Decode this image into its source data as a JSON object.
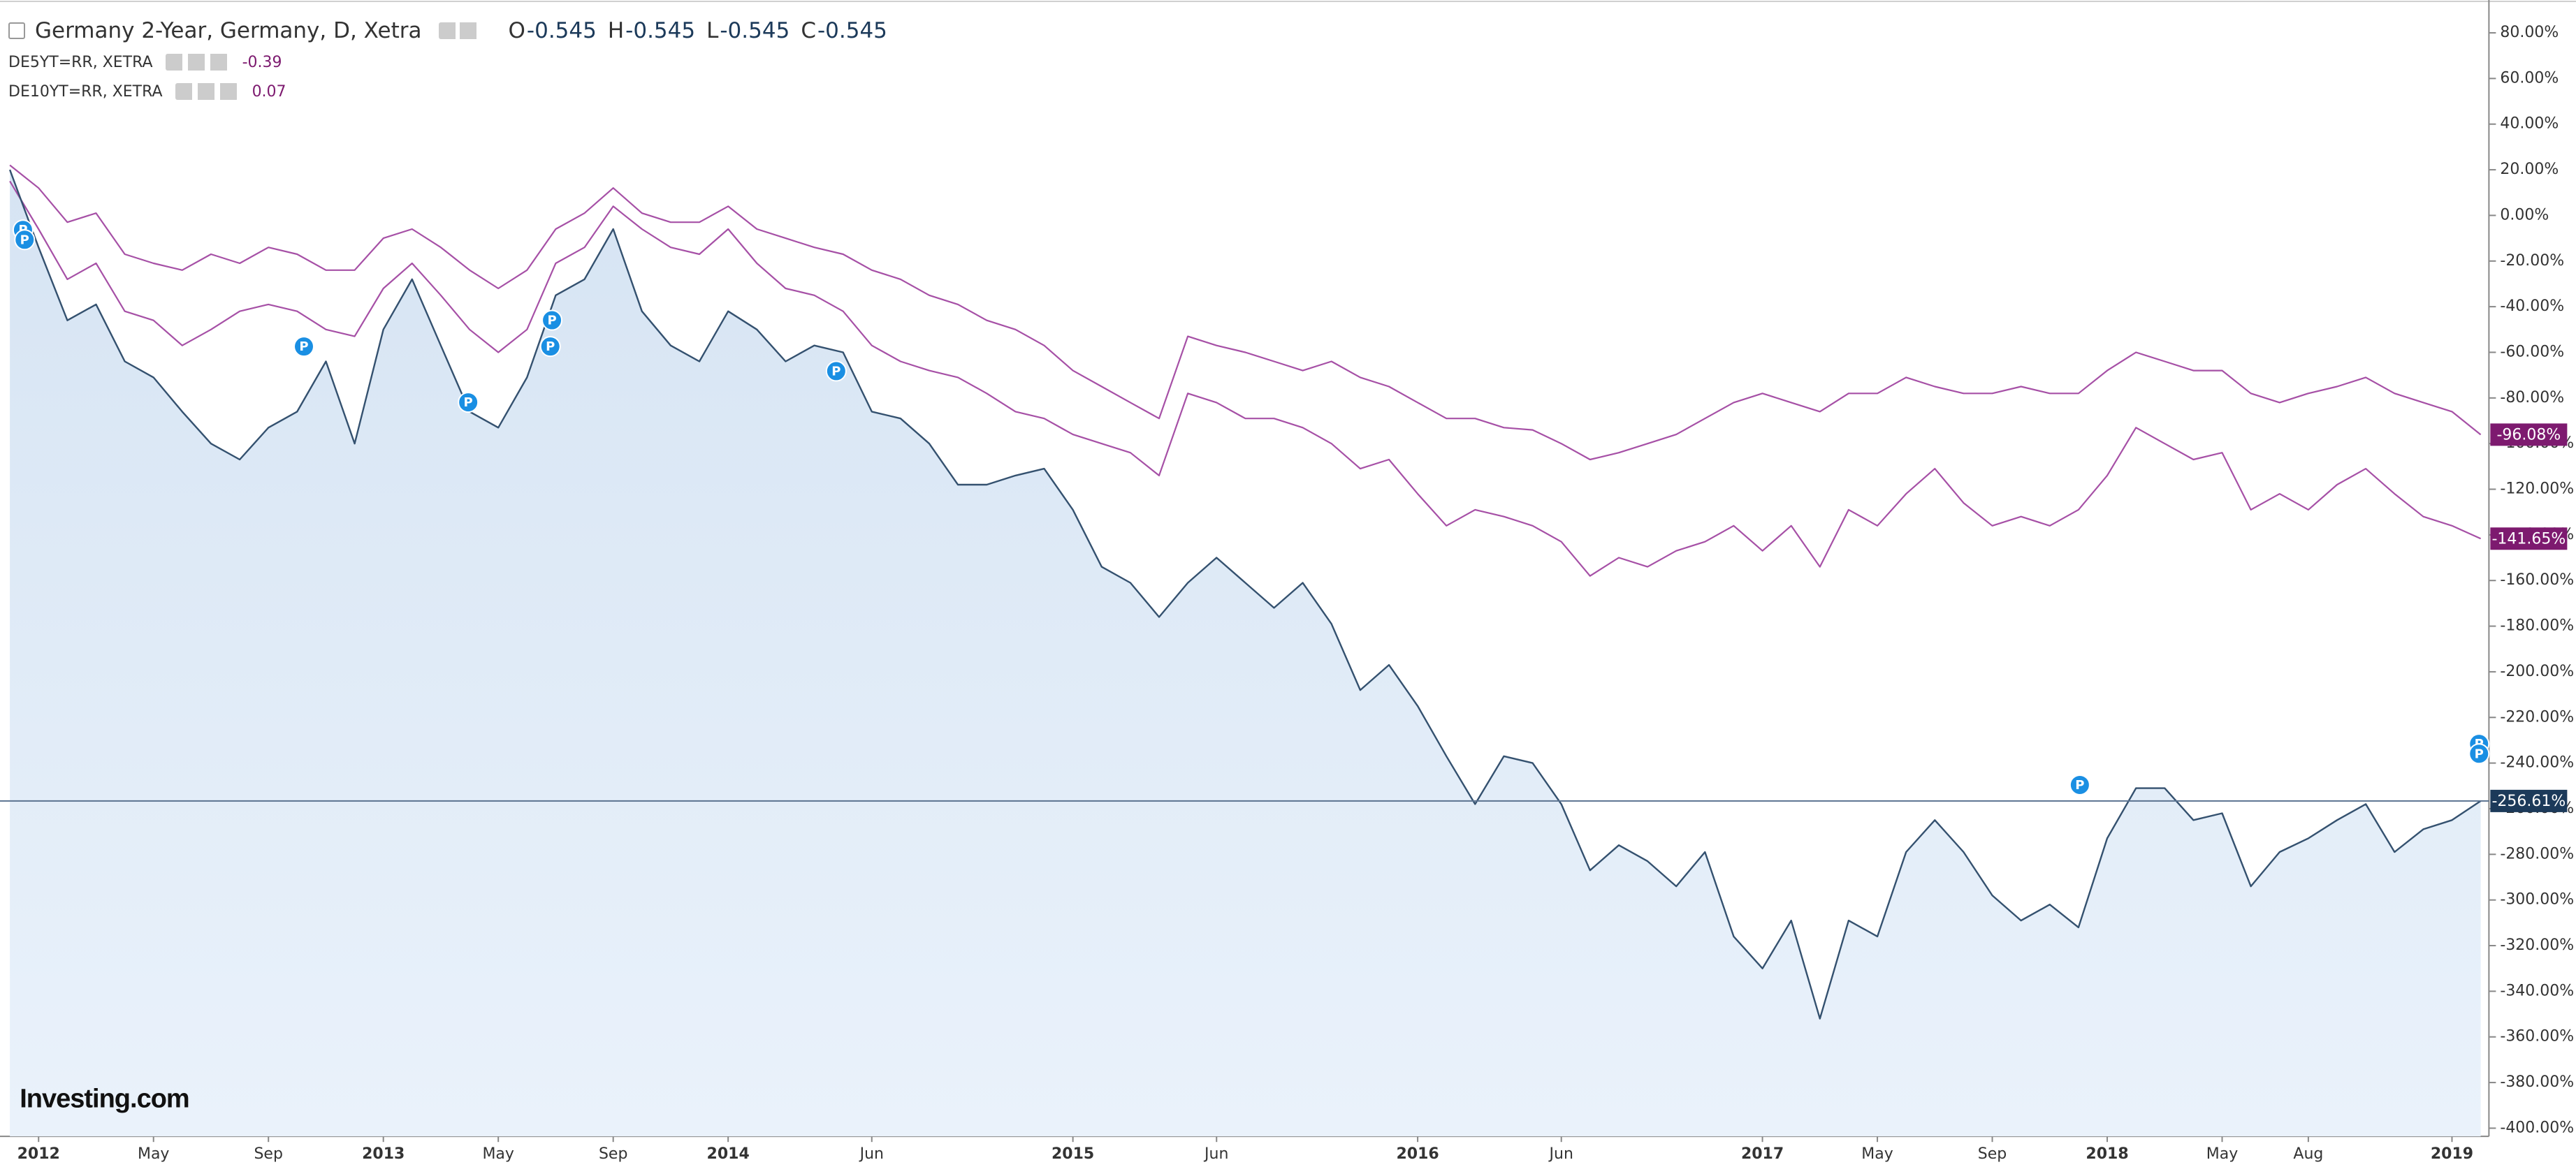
{
  "chart_data": {
    "type": "line",
    "logo": "Investing.com",
    "event_marker": "P",
    "x": [
      "2011-12",
      "2012-01",
      "2012-02",
      "2012-03",
      "2012-04",
      "2012-05",
      "2012-06",
      "2012-07",
      "2012-08",
      "2012-09",
      "2012-10",
      "2012-11",
      "2012-12",
      "2013-01",
      "2013-02",
      "2013-03",
      "2013-04",
      "2013-05",
      "2013-06",
      "2013-07",
      "2013-08",
      "2013-09",
      "2013-10",
      "2013-11",
      "2013-12",
      "2014-01",
      "2014-02",
      "2014-03",
      "2014-04",
      "2014-05",
      "2014-06",
      "2014-07",
      "2014-08",
      "2014-09",
      "2014-10",
      "2014-11",
      "2014-12",
      "2015-01",
      "2015-02",
      "2015-03",
      "2015-04",
      "2015-05",
      "2015-06",
      "2015-07",
      "2015-08",
      "2015-09",
      "2015-10",
      "2015-11",
      "2015-12",
      "2016-01",
      "2016-02",
      "2016-03",
      "2016-04",
      "2016-05",
      "2016-06",
      "2016-07",
      "2016-08",
      "2016-09",
      "2016-10",
      "2016-11",
      "2016-12",
      "2017-01",
      "2017-02",
      "2017-03",
      "2017-04",
      "2017-05",
      "2017-06",
      "2017-07",
      "2017-08",
      "2017-09",
      "2017-10",
      "2017-11",
      "2017-12",
      "2018-01",
      "2018-02",
      "2018-03",
      "2018-04",
      "2018-05",
      "2018-06",
      "2018-07",
      "2018-08",
      "2018-09",
      "2018-10",
      "2018-11",
      "2018-12",
      "2019-01",
      "2019-02"
    ],
    "series": [
      {
        "name": "Germany 2-Year, Germany, D, Xetra",
        "color": "#34516f",
        "area": true,
        "ohlc": [
          {
            "label": "O",
            "value": -0.545
          },
          {
            "label": "H",
            "value": -0.545
          },
          {
            "label": "L",
            "value": -0.545
          },
          {
            "label": "C",
            "value": -0.545
          }
        ],
        "last_label": "-256.61%",
        "label_color": "#1c3a5a",
        "values": [
          20,
          -14,
          -46,
          -39,
          -64,
          -71,
          -86,
          -100,
          -107,
          -93,
          -86,
          -64,
          -100,
          -50,
          -28,
          -57,
          -86,
          -93,
          -71,
          -35,
          -28,
          -6,
          -42,
          -57,
          -64,
          -42,
          -50,
          -64,
          -57,
          -60,
          -86,
          -89,
          -100,
          -118,
          -118,
          -114,
          -111,
          -129,
          -154,
          -161,
          -176,
          -161,
          -150,
          -161,
          -172,
          -161,
          -179,
          -208,
          -197,
          -215,
          -237,
          -258,
          -237,
          -240,
          -258,
          -287,
          -276,
          -283,
          -294,
          -279,
          -316,
          -330,
          -309,
          -352,
          -309,
          -316,
          -279,
          -265,
          -279,
          -298,
          -309,
          -302,
          -312,
          -273,
          -251,
          -251,
          -265,
          -262,
          -294,
          -279,
          -273,
          -265,
          -258,
          -279,
          -269,
          -265,
          -256.61
        ]
      },
      {
        "name": "DE5YT=RR, XETRA",
        "color": "#a650a6",
        "legend_value": -0.39,
        "last_label": "-141.65%",
        "label_color": "#7d1a6f",
        "values": [
          15,
          -6,
          -28,
          -21,
          -42,
          -46,
          -57,
          -50,
          -42,
          -39,
          -42,
          -50,
          -53,
          -32,
          -21,
          -35,
          -50,
          -60,
          -50,
          -21,
          -14,
          4,
          -6,
          -14,
          -17,
          -6,
          -21,
          -32,
          -35,
          -42,
          -57,
          -64,
          -68,
          -71,
          -78,
          -86,
          -89,
          -96,
          -100,
          -104,
          -114,
          -78,
          -82,
          -89,
          -89,
          -93,
          -100,
          -111,
          -107,
          -122,
          -136,
          -129,
          -132,
          -136,
          -143,
          -158,
          -150,
          -154,
          -147,
          -143,
          -136,
          -147,
          -136,
          -154,
          -129,
          -136,
          -122,
          -111,
          -126,
          -136,
          -132,
          -136,
          -129,
          -114,
          -93,
          -100,
          -107,
          -104,
          -129,
          -122,
          -129,
          -118,
          -111,
          -122,
          -132,
          -136,
          -141.65
        ]
      },
      {
        "name": "DE10YT=RR, XETRA",
        "color": "#a650a6",
        "legend_value": 0.07,
        "last_label": "-96.08%",
        "label_color": "#7d1a6f",
        "values": [
          22,
          12,
          -3,
          1,
          -17,
          -21,
          -24,
          -17,
          -21,
          -14,
          -17,
          -24,
          -24,
          -10,
          -6,
          -14,
          -24,
          -32,
          -24,
          -6,
          1,
          12,
          1,
          -3,
          -3,
          4,
          -6,
          -10,
          -14,
          -17,
          -24,
          -28,
          -35,
          -39,
          -46,
          -50,
          -57,
          -68,
          -75,
          -82,
          -89,
          -53,
          -57,
          -60,
          -64,
          -68,
          -64,
          -71,
          -75,
          -82,
          -89,
          -89,
          -93,
          -94,
          -100,
          -107,
          -104,
          -100,
          -96,
          -89,
          -82,
          -78,
          -82,
          -86,
          -78,
          -78,
          -71,
          -75,
          -78,
          -78,
          -75,
          -78,
          -78,
          -68,
          -60,
          -64,
          -68,
          -68,
          -78,
          -82,
          -78,
          -75,
          -71,
          -78,
          -82,
          -86,
          -96.08
        ]
      }
    ],
    "xlim": [
      "2011-12",
      "2019-02"
    ],
    "xticks": [
      {
        "value": "2012-01",
        "label": "2012"
      },
      {
        "value": "2012-05",
        "label": "May"
      },
      {
        "value": "2012-09",
        "label": "Sep"
      },
      {
        "value": "2013-01",
        "label": "2013"
      },
      {
        "value": "2013-05",
        "label": "May"
      },
      {
        "value": "2013-09",
        "label": "Sep"
      },
      {
        "value": "2014-01",
        "label": "2014"
      },
      {
        "value": "2014-06",
        "label": "Jun"
      },
      {
        "value": "2015-01",
        "label": "2015"
      },
      {
        "value": "2015-06",
        "label": "Jun"
      },
      {
        "value": "2016-01",
        "label": "2016"
      },
      {
        "value": "2016-06",
        "label": "Jun"
      },
      {
        "value": "2017-01",
        "label": "2017"
      },
      {
        "value": "2017-05",
        "label": "May"
      },
      {
        "value": "2017-09",
        "label": "Sep"
      },
      {
        "value": "2018-01",
        "label": "2018"
      },
      {
        "value": "2018-05",
        "label": "May"
      },
      {
        "value": "2018-08",
        "label": "Aug"
      },
      {
        "value": "2019-01",
        "label": "2019"
      }
    ],
    "ylim": [
      -400,
      80
    ],
    "yticks": [
      {
        "value": 80,
        "label": "80.00%"
      },
      {
        "value": 60,
        "label": "60.00%"
      },
      {
        "value": 40,
        "label": "40.00%"
      },
      {
        "value": 20,
        "label": "20.00%"
      },
      {
        "value": 0,
        "label": "0.00%"
      },
      {
        "value": -20,
        "label": "-20.00%"
      },
      {
        "value": -40,
        "label": "-40.00%"
      },
      {
        "value": -60,
        "label": "-60.00%"
      },
      {
        "value": -80,
        "label": "-80.00%"
      },
      {
        "value": -100,
        "label": "-100.00%"
      },
      {
        "value": -120,
        "label": "-120.00%"
      },
      {
        "value": -140,
        "label": "-140.00%"
      },
      {
        "value": -160,
        "label": "-160.00%"
      },
      {
        "value": -180,
        "label": "-180.00%"
      },
      {
        "value": -200,
        "label": "-200.00%"
      },
      {
        "value": -220,
        "label": "-220.00%"
      },
      {
        "value": -240,
        "label": "-240.00%"
      },
      {
        "value": -260,
        "label": "-260.00%"
      },
      {
        "value": -280,
        "label": "-280.00%"
      },
      {
        "value": -300,
        "label": "-300.00%"
      },
      {
        "value": -320,
        "label": "-320.00%"
      },
      {
        "value": -340,
        "label": "-340.00%"
      },
      {
        "value": -360,
        "label": "-360.00%"
      },
      {
        "value": -380,
        "label": "-380.00%"
      },
      {
        "value": -400,
        "label": "-400.00%"
      }
    ],
    "grid": false
  }
}
